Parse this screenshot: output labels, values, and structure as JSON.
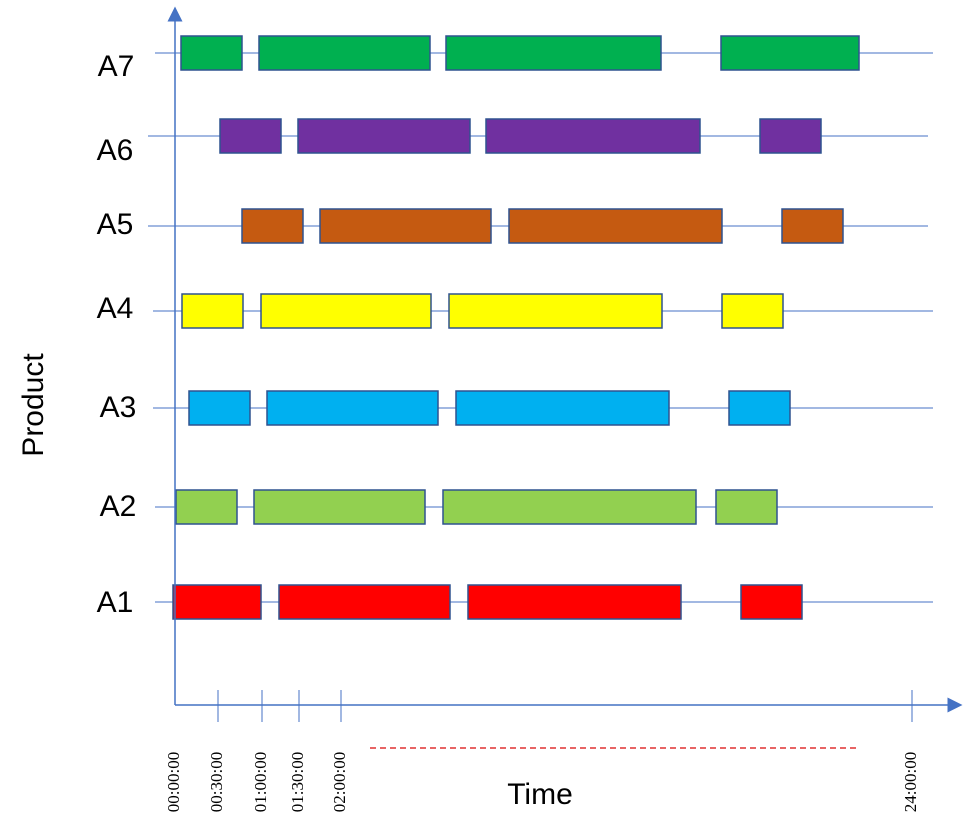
{
  "y_axis": {
    "title": "Product",
    "labels": [
      "A7",
      "A6",
      "A5",
      "A4",
      "A3",
      "A2",
      "A1"
    ]
  },
  "x_axis": {
    "title": "Time",
    "ticks": [
      "00:00:00",
      "00:30:00",
      "01:00:00",
      "01:30:00",
      "02:00:00",
      "24:00:00"
    ]
  }
}
